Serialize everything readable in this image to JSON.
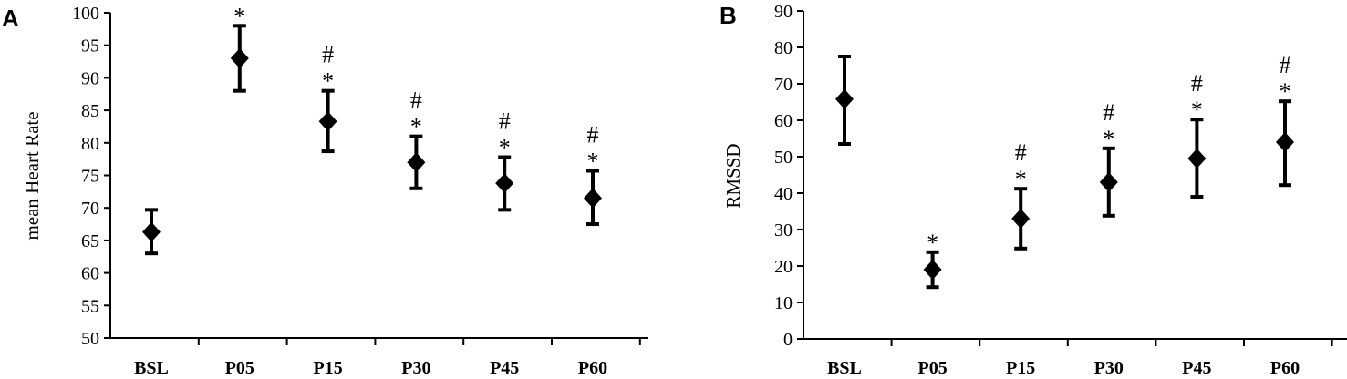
{
  "chart_data": [
    {
      "panel": "A",
      "type": "scatter",
      "ylabel": "mean Heart Rate",
      "xlabel": "",
      "ylim": [
        50,
        100
      ],
      "yticks": [
        50,
        55,
        60,
        65,
        70,
        75,
        80,
        85,
        90,
        95,
        100
      ],
      "categories": [
        "BSL",
        "P05",
        "P15",
        "P30",
        "P45",
        "P60"
      ],
      "series": [
        {
          "marker": "diamond",
          "values": [
            66.3,
            93.0,
            83.3,
            77.0,
            73.8,
            71.5
          ],
          "error_low": [
            63.0,
            88.0,
            78.7,
            73.0,
            69.7,
            67.5
          ],
          "error_high": [
            69.7,
            98.0,
            88.0,
            81.0,
            77.8,
            75.7
          ]
        }
      ],
      "annotations": [
        [
          "",
          "",
          ""
        ],
        [
          "*",
          "",
          ""
        ],
        [
          "*",
          "#",
          ""
        ],
        [
          "*",
          "#",
          ""
        ],
        [
          "*",
          "#",
          ""
        ],
        [
          "*",
          "#",
          ""
        ]
      ],
      "grid": false,
      "color": "#000000"
    },
    {
      "panel": "B",
      "type": "scatter",
      "ylabel": "RMSSD",
      "xlabel": "",
      "ylim": [
        0,
        90
      ],
      "yticks": [
        0,
        10,
        20,
        30,
        40,
        50,
        60,
        70,
        80,
        90
      ],
      "categories": [
        "BSL",
        "P05",
        "P15",
        "P30",
        "P45",
        "P60"
      ],
      "series": [
        {
          "marker": "diamond",
          "values": [
            65.8,
            19.0,
            33.0,
            43.0,
            49.5,
            54.0
          ],
          "error_low": [
            53.5,
            14.2,
            24.8,
            33.8,
            39.0,
            42.2
          ],
          "error_high": [
            77.5,
            23.8,
            41.2,
            52.3,
            60.2,
            65.2
          ]
        }
      ],
      "annotations": [
        [
          "",
          "",
          ""
        ],
        [
          "*",
          "",
          ""
        ],
        [
          "*",
          "#",
          ""
        ],
        [
          "*",
          "#",
          ""
        ],
        [
          "*",
          "#",
          ""
        ],
        [
          "*",
          "#",
          ""
        ]
      ],
      "grid": false,
      "color": "#000000"
    }
  ]
}
